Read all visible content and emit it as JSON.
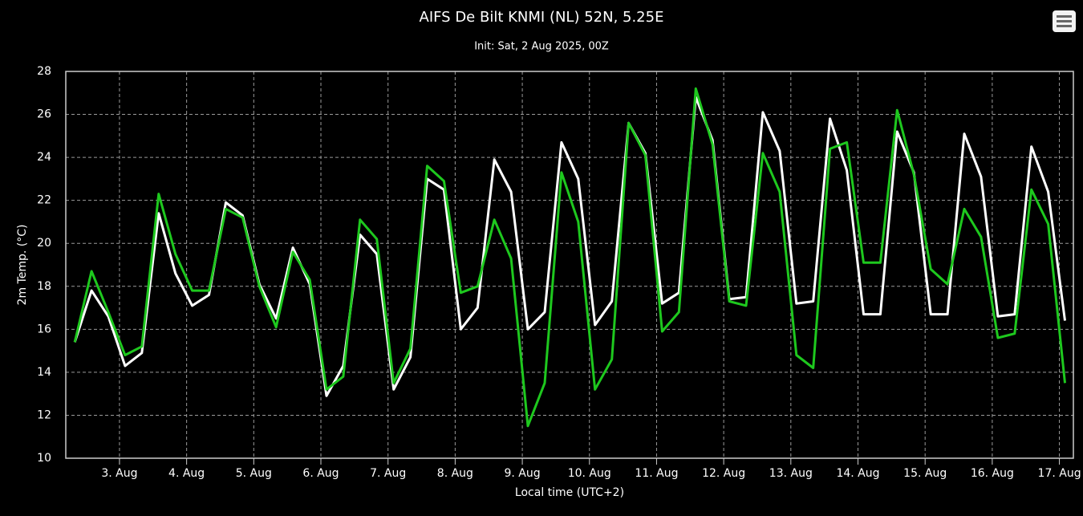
{
  "chart_data": {
    "type": "line",
    "title": "AIFS De Bilt KNMI (NL) 52N, 5.25E",
    "subtitle": "Init: Sat, 2 Aug 2025, 00Z",
    "y_label": "2m Temp. (°C)",
    "x_label": "Local time (UTC+2)",
    "x": [
      "2025-08-02T08:00",
      "2025-08-02T14:00",
      "2025-08-02T20:00",
      "2025-08-03T02:00",
      "2025-08-03T08:00",
      "2025-08-03T14:00",
      "2025-08-03T20:00",
      "2025-08-04T02:00",
      "2025-08-04T08:00",
      "2025-08-04T14:00",
      "2025-08-04T20:00",
      "2025-08-05T02:00",
      "2025-08-05T08:00",
      "2025-08-05T14:00",
      "2025-08-05T20:00",
      "2025-08-06T02:00",
      "2025-08-06T08:00",
      "2025-08-06T14:00",
      "2025-08-06T20:00",
      "2025-08-07T02:00",
      "2025-08-07T08:00",
      "2025-08-07T14:00",
      "2025-08-07T20:00",
      "2025-08-08T02:00",
      "2025-08-08T08:00",
      "2025-08-08T14:00",
      "2025-08-08T20:00",
      "2025-08-09T02:00",
      "2025-08-09T08:00",
      "2025-08-09T14:00",
      "2025-08-09T20:00",
      "2025-08-10T02:00",
      "2025-08-10T08:00",
      "2025-08-10T14:00",
      "2025-08-10T20:00",
      "2025-08-11T02:00",
      "2025-08-11T08:00",
      "2025-08-11T14:00",
      "2025-08-11T20:00",
      "2025-08-12T02:00",
      "2025-08-12T08:00",
      "2025-08-12T14:00",
      "2025-08-12T20:00",
      "2025-08-13T02:00",
      "2025-08-13T08:00",
      "2025-08-13T14:00",
      "2025-08-13T20:00",
      "2025-08-14T02:00",
      "2025-08-14T08:00",
      "2025-08-14T14:00",
      "2025-08-14T20:00",
      "2025-08-15T02:00",
      "2025-08-15T08:00",
      "2025-08-15T14:00",
      "2025-08-15T20:00",
      "2025-08-16T02:00",
      "2025-08-16T08:00",
      "2025-08-16T14:00",
      "2025-08-16T20:00",
      "2025-08-17T02:00"
    ],
    "series": [
      {
        "color": "#ffffff",
        "values": [
          15.4,
          17.8,
          16.6,
          14.3,
          14.9,
          21.4,
          18.6,
          17.1,
          17.6,
          21.9,
          21.3,
          18.1,
          16.5,
          19.8,
          18.1,
          12.9,
          14.3,
          20.4,
          19.5,
          13.2,
          14.7,
          23.0,
          22.5,
          16.0,
          17.0,
          23.9,
          22.4,
          16.0,
          16.8,
          24.7,
          23.0,
          16.2,
          17.3,
          25.6,
          24.2,
          17.2,
          17.7,
          26.8,
          24.8,
          17.4,
          17.5,
          26.1,
          24.3,
          17.2,
          17.3,
          25.8,
          23.4,
          16.7,
          16.7,
          25.2,
          23.3,
          16.7,
          16.7,
          25.1,
          23.1,
          16.6,
          16.7,
          24.5,
          22.4,
          16.4
        ]
      },
      {
        "color": "#1ec81e",
        "values": [
          15.4,
          18.7,
          16.8,
          14.8,
          15.2,
          22.3,
          19.5,
          17.8,
          17.8,
          21.6,
          21.2,
          18.0,
          16.1,
          19.6,
          18.3,
          13.2,
          13.8,
          21.1,
          20.2,
          13.5,
          15.1,
          23.6,
          22.9,
          17.7,
          18.0,
          21.1,
          19.3,
          11.5,
          13.5,
          23.3,
          21.0,
          13.2,
          14.6,
          25.6,
          24.1,
          15.9,
          16.8,
          27.2,
          24.6,
          17.3,
          17.1,
          24.2,
          22.4,
          14.8,
          14.2,
          24.4,
          24.7,
          19.1,
          19.1,
          26.2,
          23.2,
          18.8,
          18.1,
          21.6,
          20.3,
          15.6,
          15.8,
          22.5,
          20.9,
          13.5
        ]
      }
    ],
    "xlim": [
      "2025-08-02T04:48",
      "2025-08-17T05:00"
    ],
    "xticks": [
      {
        "value": "2025-08-03T00:00",
        "label": "3. Aug"
      },
      {
        "value": "2025-08-04T00:00",
        "label": "4. Aug"
      },
      {
        "value": "2025-08-05T00:00",
        "label": "5. Aug"
      },
      {
        "value": "2025-08-06T00:00",
        "label": "6. Aug"
      },
      {
        "value": "2025-08-07T00:00",
        "label": "7. Aug"
      },
      {
        "value": "2025-08-08T00:00",
        "label": "8. Aug"
      },
      {
        "value": "2025-08-09T00:00",
        "label": "9. Aug"
      },
      {
        "value": "2025-08-10T00:00",
        "label": "10. Aug"
      },
      {
        "value": "2025-08-11T00:00",
        "label": "11. Aug"
      },
      {
        "value": "2025-08-12T00:00",
        "label": "12. Aug"
      },
      {
        "value": "2025-08-13T00:00",
        "label": "13. Aug"
      },
      {
        "value": "2025-08-14T00:00",
        "label": "14. Aug"
      },
      {
        "value": "2025-08-15T00:00",
        "label": "15. Aug"
      },
      {
        "value": "2025-08-16T00:00",
        "label": "16. Aug"
      },
      {
        "value": "2025-08-17T00:00",
        "label": "17. Aug"
      }
    ],
    "ylim": [
      10,
      28
    ],
    "yticks": [
      10,
      12,
      14,
      16,
      18,
      20,
      22,
      24,
      26,
      28
    ],
    "grid": true
  }
}
